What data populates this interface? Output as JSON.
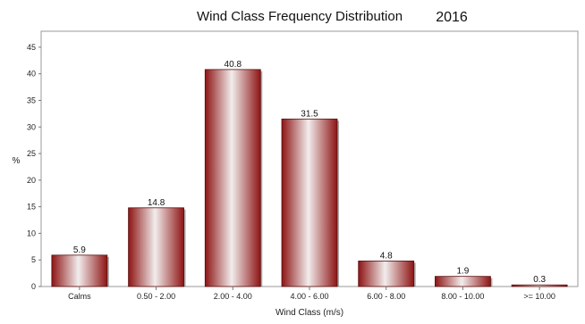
{
  "chart_data": {
    "type": "bar",
    "title": "Wind Class Frequency Distribution",
    "subtitle": "2016",
    "xlabel": "Wind Class (m/s)",
    "ylabel": "%",
    "ylim": [
      0,
      48
    ],
    "yticks": [
      0,
      5,
      10,
      15,
      20,
      25,
      30,
      35,
      40,
      45
    ],
    "grid": false,
    "categories": [
      "Calms",
      "0.50 - 2.00",
      "2.00 - 4.00",
      "4.00 - 6.00",
      "6.00 - 8.00",
      "8.00 - 10.00",
      ">= 10.00"
    ],
    "values": [
      5.9,
      14.8,
      40.8,
      31.5,
      4.8,
      1.9,
      0.3
    ],
    "data_labels": [
      "5.9",
      "14.8",
      "40.8",
      "31.5",
      "4.8",
      "1.9",
      "0.3"
    ],
    "bar_color": "#9b1c1c",
    "bar_highlight": "#f2eded"
  }
}
